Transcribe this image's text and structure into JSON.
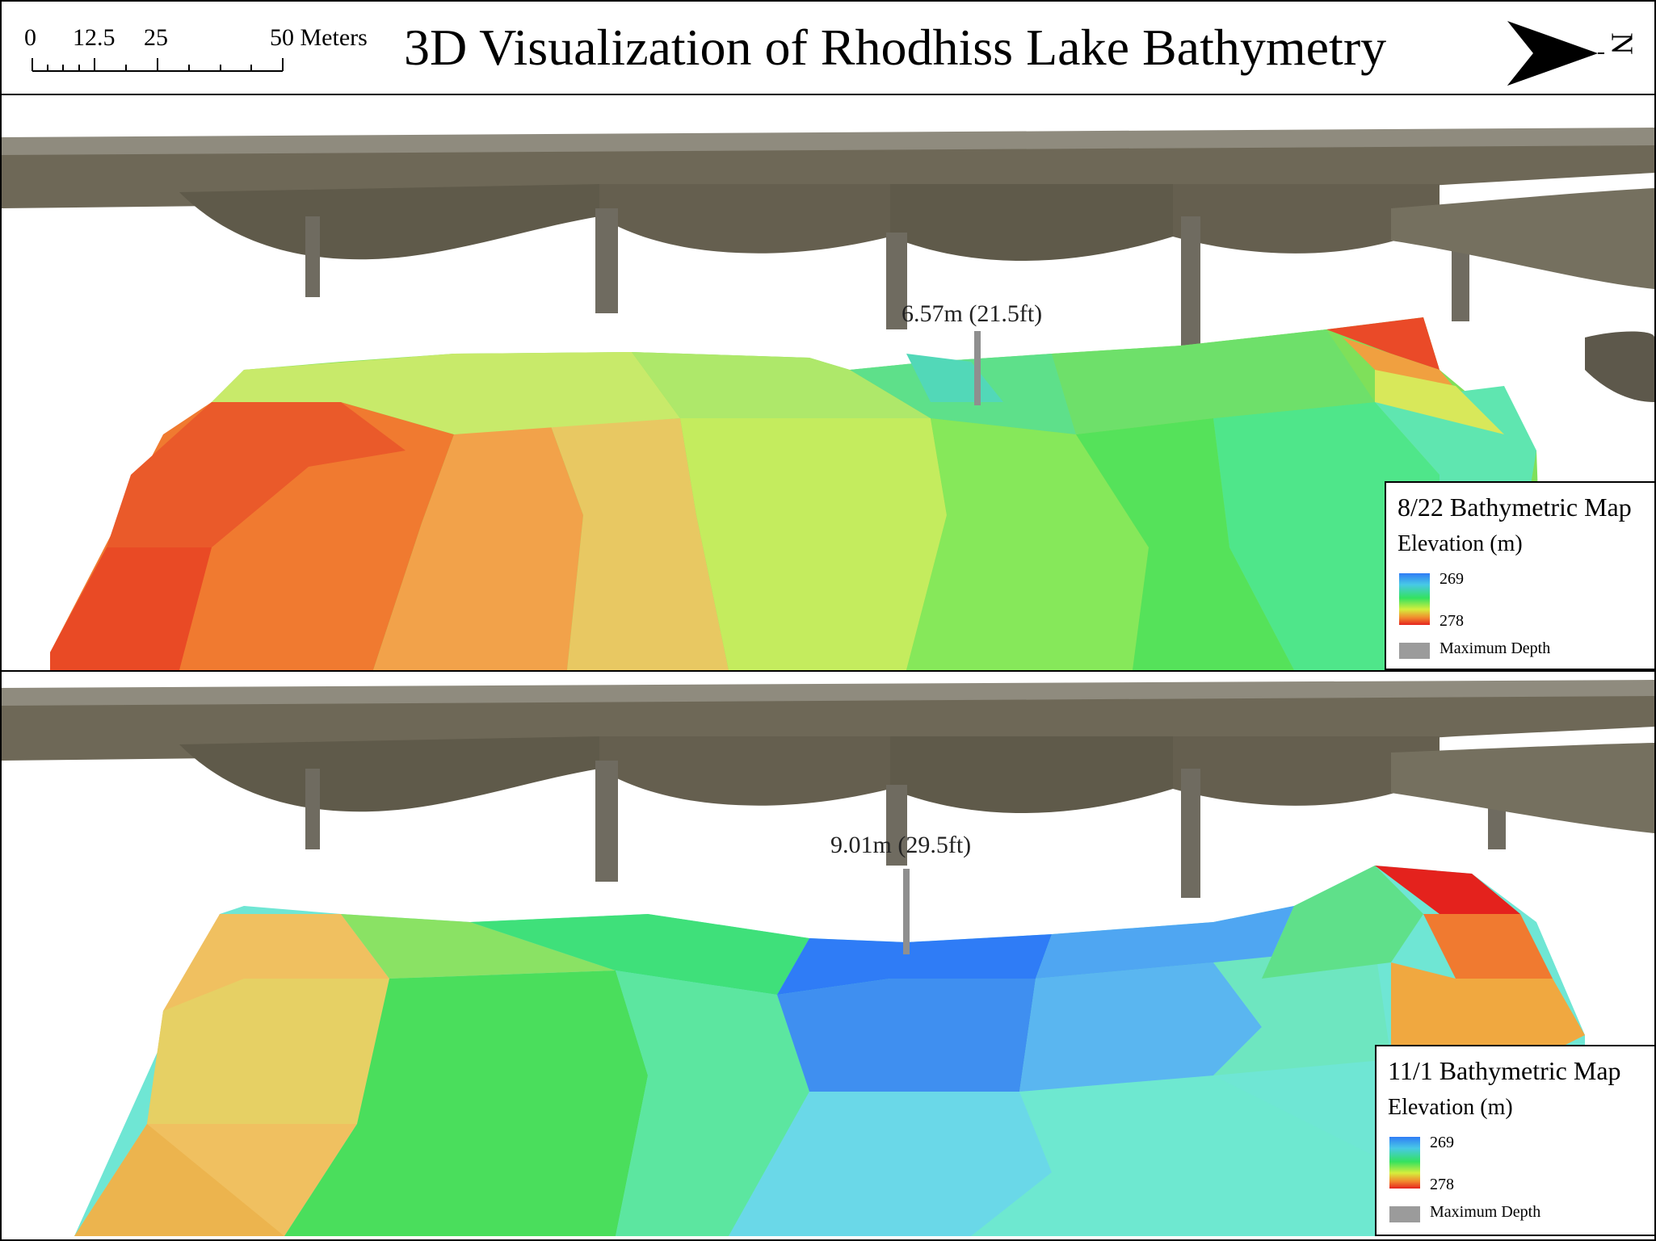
{
  "header": {
    "title": "3D Visualization of Rhodhiss Lake Bathymetry",
    "scale": {
      "ticks": [
        "0",
        "12.5",
        "25",
        "50 Meters"
      ]
    },
    "north_arrow": {
      "label": "N",
      "icon": "north-arrow-icon"
    }
  },
  "maps": [
    {
      "legend_title": "8/22 Bathymetric Map",
      "legend_subtitle": "Elevation (m)",
      "ramp_top": "269",
      "ramp_bottom": "278",
      "max_depth_key": "Maximum Depth",
      "depth_annotation": "6.57m (21.5ft)"
    },
    {
      "legend_title": "11/1 Bathymetric Map",
      "legend_subtitle": "Elevation (m)",
      "ramp_top": "269",
      "ramp_bottom": "278",
      "max_depth_key": "Maximum Depth",
      "depth_annotation": "9.01m (29.5ft)"
    }
  ],
  "colors": {
    "deep": "#2f7cf6",
    "cyan": "#5fdcd0",
    "green": "#3be05a",
    "yellow": "#d8ec55",
    "orange": "#f2a03a",
    "shallow": "#e5231f",
    "bridge": "#6b6555",
    "max_depth_pole": "#8f8f8f"
  }
}
